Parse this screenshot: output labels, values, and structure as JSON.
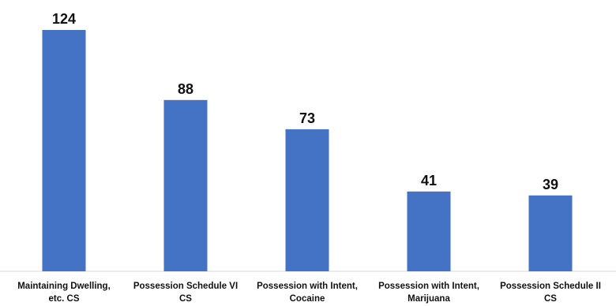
{
  "chart_data": {
    "type": "bar",
    "title": "",
    "xlabel": "",
    "ylabel": "",
    "categories": [
      [
        "Maintaining Dwelling,",
        "etc. CS"
      ],
      [
        "Possession Schedule VI",
        "CS"
      ],
      [
        "Possession with Intent,",
        "Cocaine"
      ],
      [
        "Possession with Intent,",
        "Marijuana"
      ],
      [
        "Possession Schedule II",
        "CS"
      ]
    ],
    "values": [
      124,
      88,
      73,
      41,
      39
    ],
    "ylim": [
      0,
      124
    ],
    "grid": false,
    "legend": "none",
    "bar_color": "#4472C4"
  }
}
